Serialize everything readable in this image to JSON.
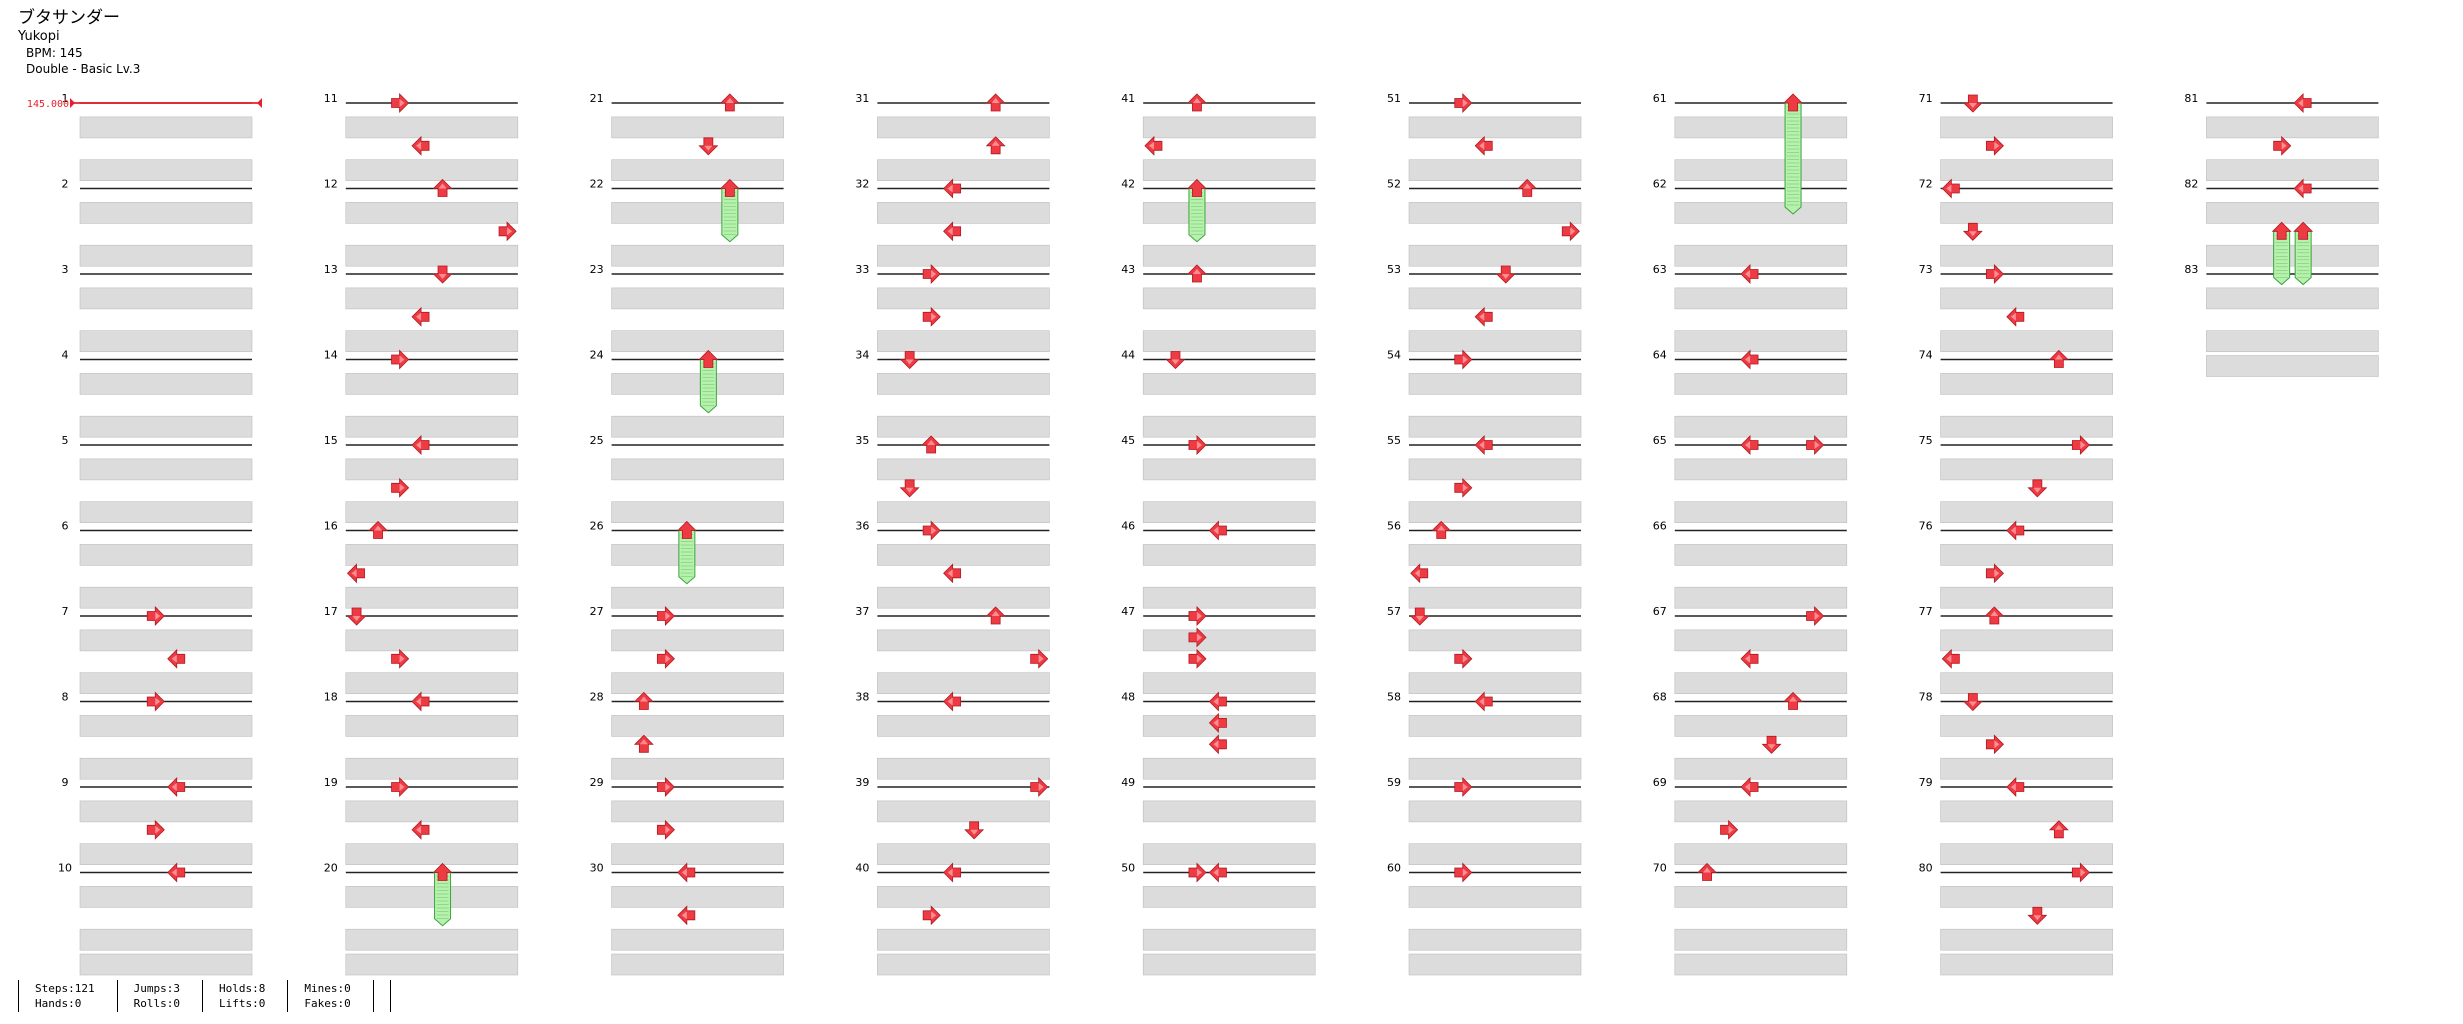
{
  "song": {
    "title": "ブタサンダー",
    "artist": "Yukopi",
    "bpm_label": "BPM: 145",
    "chart_label": "Double - Basic  Lv.3"
  },
  "bpm_marker": {
    "label": "145.000",
    "color": "#e8202a"
  },
  "colors": {
    "arrow": "#ee3b43",
    "hold_fill": "#b8f0b0",
    "hold_stroke": "#3aa53a",
    "row_fill": "#dcdcdc"
  },
  "chart_data": {
    "type": "table",
    "panels": 8,
    "measure_count": 83,
    "rows_per_measure": 4,
    "notes_measures_1_to_10_and_81_to_83": [
      {
        "measure": 7,
        "row": 0,
        "panel": 3,
        "dir": "right"
      },
      {
        "measure": 7,
        "row": 1,
        "panel": 4,
        "dir": "left"
      },
      {
        "measure": 8,
        "row": 0,
        "panel": 3,
        "dir": "right"
      },
      {
        "measure": 9,
        "row": 0,
        "panel": 4,
        "dir": "left"
      },
      {
        "measure": 9,
        "row": 1,
        "panel": 3,
        "dir": "right"
      },
      {
        "measure": 10,
        "row": 0,
        "panel": 4,
        "dir": "left"
      },
      {
        "measure": 81,
        "row": 0,
        "panel": 4,
        "dir": "left"
      },
      {
        "measure": 81,
        "row": 1,
        "panel": 3,
        "dir": "right"
      },
      {
        "measure": 82,
        "row": 0,
        "panel": 4,
        "dir": "left"
      },
      {
        "measure": 82,
        "row": 1,
        "panel": 3,
        "dir": "hold"
      },
      {
        "measure": 82,
        "row": 1,
        "panel": 4,
        "dir": "hold"
      }
    ]
  },
  "stats": [
    {
      "a": "Steps:121",
      "b": "Hands:0"
    },
    {
      "a": "Jumps:3",
      "b": "Rolls:0"
    },
    {
      "a": "Holds:8",
      "b": "Lifts:0"
    },
    {
      "a": "Mines:0",
      "b": "Fakes:0"
    }
  ]
}
